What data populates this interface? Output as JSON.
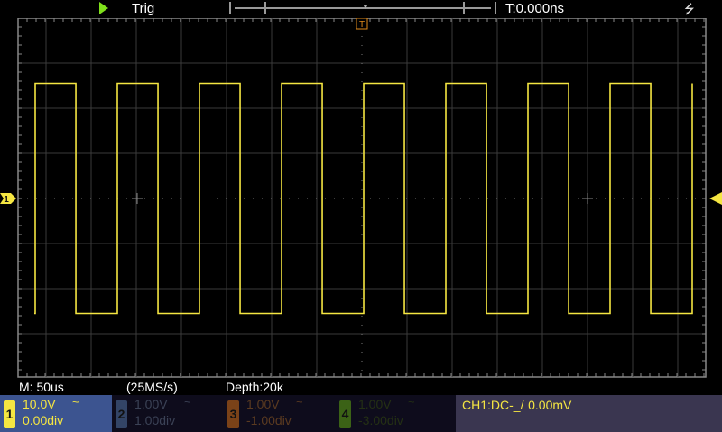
{
  "status": {
    "run_state_icon": "play-icon",
    "run_color": "#7fe01b",
    "trigger_label": "Trig",
    "trigger_time": "T:0.000ns",
    "usb_icon": "usb-icon"
  },
  "acquisition": {
    "timebase": "M: 50us",
    "sample_rate": "(25MS/s)",
    "depth": "Depth:20k"
  },
  "channels": [
    {
      "num": "1",
      "volts": "10.0V",
      "offset": "0.00div",
      "coupling": "~",
      "color": "#f5e642",
      "active": true
    },
    {
      "num": "2",
      "volts": "1.00V",
      "offset": "1.00div",
      "coupling": "~",
      "color": "#334466",
      "active": false
    },
    {
      "num": "3",
      "volts": "1.00V",
      "offset": "-1.00div",
      "coupling": "~",
      "color": "#7a4218",
      "active": false
    },
    {
      "num": "4",
      "volts": "1.00V",
      "offset": "-3.00div",
      "coupling": "~",
      "color": "#3b6216",
      "active": false
    }
  ],
  "trigger_info": "CH1:DC-_/‾0.00mV",
  "markers": {
    "trigger_marker": "T",
    "ch1_marker": "1"
  },
  "waveform": {
    "channel": "1",
    "shape": "square",
    "time_per_div_us": 50,
    "period_us": 91,
    "first_rising_edge_us": -362,
    "duty": 0.495,
    "high_div": 2.55,
    "low_div": -2.55,
    "color": "#f5e642"
  }
}
